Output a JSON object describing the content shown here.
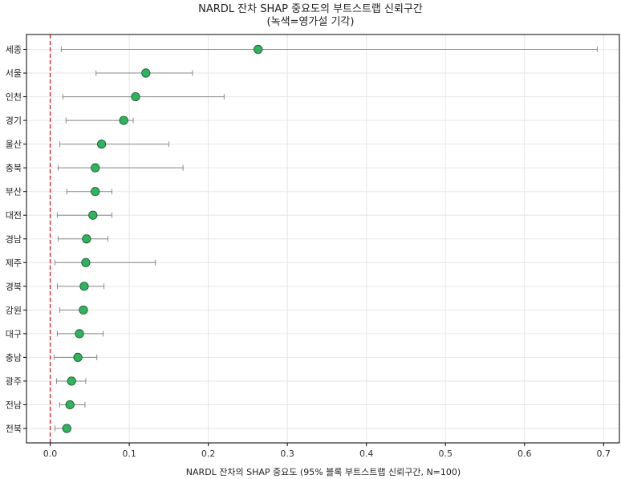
{
  "chart_data": {
    "type": "scatter",
    "title": "NARDL 잔차 SHAP 중요도의 부트스트랩 신뢰구간",
    "subtitle": "(녹색=영가설 기각)",
    "xlabel": "NARDL 잔차의 SHAP 중요도 (95% 블록 부트스트랩 신뢰구간, N=100)",
    "ylabel": "",
    "xlim": [
      -0.03,
      0.72
    ],
    "xticks": [
      0.0,
      0.1,
      0.2,
      0.3,
      0.4,
      0.5,
      0.6,
      0.7
    ],
    "xtick_labels": [
      "0.0",
      "0.1",
      "0.2",
      "0.3",
      "0.4",
      "0.5",
      "0.6",
      "0.7"
    ],
    "grid": true,
    "reference_line": {
      "x": 0.0,
      "color": "#e41a1c",
      "style": "dashed"
    },
    "point_color": "#2db55d",
    "errorbar_color": "#888888",
    "categories": [
      "세종",
      "서울",
      "인천",
      "경기",
      "울산",
      "충북",
      "부산",
      "대전",
      "경남",
      "제주",
      "경북",
      "강원",
      "대구",
      "충남",
      "광주",
      "전남",
      "전북"
    ],
    "values": [
      0.263,
      0.121,
      0.108,
      0.093,
      0.065,
      0.057,
      0.057,
      0.054,
      0.046,
      0.045,
      0.043,
      0.042,
      0.037,
      0.035,
      0.027,
      0.025,
      0.021
    ],
    "ci_lower": [
      0.014,
      0.058,
      0.016,
      0.02,
      0.012,
      0.01,
      0.021,
      0.009,
      0.01,
      0.006,
      0.009,
      0.012,
      0.009,
      0.005,
      0.008,
      0.012,
      0.006
    ],
    "ci_upper": [
      0.692,
      0.18,
      0.22,
      0.105,
      0.15,
      0.168,
      0.078,
      0.078,
      0.073,
      0.133,
      0.068,
      0.043,
      0.067,
      0.059,
      0.045,
      0.044,
      0.021
    ]
  }
}
